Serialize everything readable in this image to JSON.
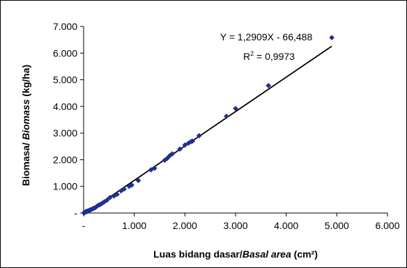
{
  "chart_data": {
    "type": "scatter",
    "xlabel_parts": [
      {
        "text": "Luas bidang dasar/",
        "italic": false
      },
      {
        "text": "Basal area",
        "italic": true
      },
      {
        "text": " (cm²)",
        "italic": false
      }
    ],
    "ylabel_parts": [
      {
        "text": "Biomasa/ ",
        "italic": false
      },
      {
        "text": "Biomass",
        "italic": true
      },
      {
        "text": " (kg/ha)",
        "italic": false
      }
    ],
    "xlim": [
      0,
      6000
    ],
    "ylim": [
      0,
      7000
    ],
    "x_ticks": [
      {
        "value": 0,
        "label": "-"
      },
      {
        "value": 1000,
        "label": "1.000"
      },
      {
        "value": 2000,
        "label": "2.000"
      },
      {
        "value": 3000,
        "label": "3.000"
      },
      {
        "value": 4000,
        "label": "4.000"
      },
      {
        "value": 5000,
        "label": "5.000"
      },
      {
        "value": 6000,
        "label": "6.000"
      }
    ],
    "y_ticks": [
      {
        "value": 0,
        "label": "-"
      },
      {
        "value": 1000,
        "label": "1.000"
      },
      {
        "value": 2000,
        "label": "2.000"
      },
      {
        "value": 3000,
        "label": "3.000"
      },
      {
        "value": 4000,
        "label": "4.000"
      },
      {
        "value": 5000,
        "label": "5.000"
      },
      {
        "value": 6000,
        "label": "6.000"
      },
      {
        "value": 7000,
        "label": "7.000"
      }
    ],
    "grid": false,
    "marker": "diamond",
    "marker_color": "#1f2f8f",
    "trendline": {
      "slope": 1.2909,
      "intercept": -66.488,
      "x_range": [
        50,
        4900
      ],
      "color": "#000000"
    },
    "equation_text": "Y = 1,2909X - 66,488",
    "r2_prefix": "R",
    "r2_sup": "2",
    "r2_value": " = 0,9973",
    "points": [
      [
        5,
        2
      ],
      [
        10,
        5
      ],
      [
        15,
        10
      ],
      [
        20,
        15
      ],
      [
        25,
        25
      ],
      [
        30,
        30
      ],
      [
        35,
        35
      ],
      [
        40,
        40
      ],
      [
        45,
        45
      ],
      [
        50,
        50
      ],
      [
        55,
        55
      ],
      [
        60,
        60
      ],
      [
        70,
        60
      ],
      [
        80,
        70
      ],
      [
        90,
        80
      ],
      [
        100,
        80
      ],
      [
        110,
        90
      ],
      [
        120,
        100
      ],
      [
        130,
        120
      ],
      [
        150,
        130
      ],
      [
        180,
        160
      ],
      [
        200,
        180
      ],
      [
        230,
        200
      ],
      [
        260,
        250
      ],
      [
        300,
        300
      ],
      [
        330,
        320
      ],
      [
        370,
        370
      ],
      [
        410,
        420
      ],
      [
        460,
        480
      ],
      [
        520,
        580
      ],
      [
        600,
        640
      ],
      [
        660,
        700
      ],
      [
        740,
        830
      ],
      [
        800,
        900
      ],
      [
        900,
        1000
      ],
      [
        950,
        1050
      ],
      [
        1080,
        1220
      ],
      [
        1330,
        1620
      ],
      [
        1400,
        1680
      ],
      [
        1600,
        1980
      ],
      [
        1650,
        2050
      ],
      [
        1700,
        2150
      ],
      [
        1750,
        2220
      ],
      [
        1900,
        2400
      ],
      [
        2000,
        2550
      ],
      [
        2070,
        2620
      ],
      [
        2120,
        2680
      ],
      [
        2150,
        2700
      ],
      [
        2280,
        2900
      ],
      [
        2820,
        3630
      ],
      [
        3000,
        3920
      ],
      [
        3650,
        4780
      ],
      [
        4900,
        6580
      ]
    ]
  }
}
